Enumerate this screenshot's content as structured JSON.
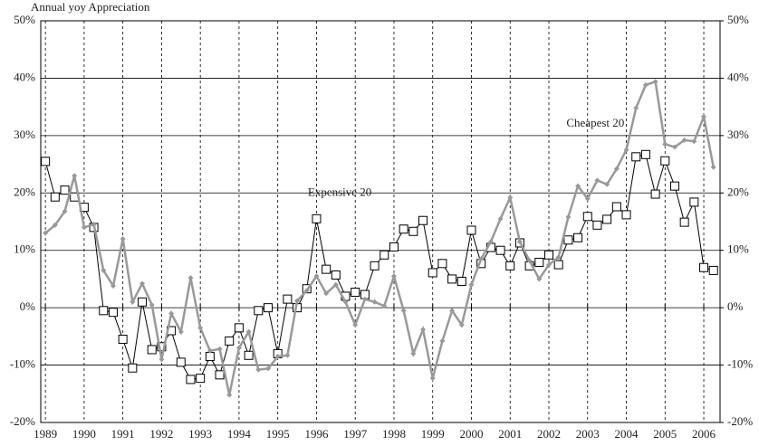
{
  "chart_data": {
    "type": "line",
    "title": "Annual yoy Appreciation",
    "x": [
      1989,
      1989.25,
      1989.5,
      1989.75,
      1990,
      1990.25,
      1990.5,
      1990.75,
      1991,
      1991.25,
      1991.5,
      1991.75,
      1992,
      1992.25,
      1992.5,
      1992.75,
      1993,
      1993.25,
      1993.5,
      1993.75,
      1994,
      1994.25,
      1994.5,
      1994.75,
      1995,
      1995.25,
      1995.5,
      1995.75,
      1996,
      1996.25,
      1996.5,
      1996.75,
      1997,
      1997.25,
      1997.5,
      1997.75,
      1998,
      1998.25,
      1998.5,
      1998.75,
      1999,
      1999.25,
      1999.5,
      1999.75,
      2000,
      2000.25,
      2000.5,
      2000.75,
      2001,
      2001.25,
      2001.5,
      2001.75,
      2002,
      2002.25,
      2002.5,
      2002.75,
      2003,
      2003.25,
      2003.5,
      2003.75,
      2004,
      2004.25,
      2004.5,
      2004.75,
      2005,
      2005.25,
      2005.5,
      2005.75,
      2006,
      2006.25
    ],
    "series": [
      {
        "name": "Expensive 20",
        "color": "#000000",
        "marker": "square",
        "values": [
          25.5,
          19.3,
          20.5,
          19.3,
          17.5,
          14.0,
          -0.5,
          -0.8,
          -5.5,
          -10.5,
          1.0,
          -7.3,
          -6.8,
          -4.0,
          -9.5,
          -12.5,
          -12.3,
          -8.5,
          -11.7,
          -5.8,
          -3.5,
          -8.3,
          -0.5,
          0.0,
          -8.0,
          1.5,
          0.0,
          3.3,
          15.5,
          6.7,
          5.7,
          2.0,
          2.7,
          2.3,
          7.3,
          9.2,
          10.6,
          13.7,
          13.3,
          15.2,
          6.1,
          7.7,
          5.0,
          4.6,
          13.5,
          7.7,
          10.5,
          10.0,
          7.3,
          11.3,
          7.3,
          7.9,
          9.2,
          7.5,
          11.8,
          12.2,
          15.9,
          14.4,
          15.4,
          17.6,
          16.2,
          26.3,
          26.7,
          19.8,
          25.6,
          21.2,
          14.9,
          18.4,
          7.0,
          6.5
        ]
      },
      {
        "name": "Cheapest 20",
        "color": "#999999",
        "marker": "diamond",
        "values": [
          13.0,
          14.4,
          16.8,
          23.0,
          14.0,
          14.5,
          6.5,
          3.8,
          12.0,
          1.0,
          4.2,
          0.5,
          -9.0,
          -1.0,
          -4.2,
          5.2,
          -3.5,
          -7.5,
          -7.2,
          -15.2,
          -7.0,
          -4.2,
          -10.8,
          -10.6,
          -8.5,
          -8.3,
          1.2,
          3.0,
          5.5,
          2.5,
          4.0,
          1.0,
          -3.0,
          1.5,
          1.0,
          0.3,
          5.5,
          -0.5,
          -8.0,
          -3.8,
          -12.3,
          -5.8,
          -0.5,
          -3.0,
          4.0,
          8.5,
          11.5,
          15.5,
          19.2,
          11.5,
          8.2,
          5.0,
          7.5,
          8.8,
          15.8,
          21.2,
          19.0,
          22.2,
          21.5,
          24.2,
          27.5,
          34.8,
          38.8,
          39.4,
          28.5,
          28.0,
          29.2,
          29.0,
          33.3,
          24.5
        ]
      }
    ],
    "xlim": [
      1988.88,
      2006.42
    ],
    "xticks": [
      1989,
      1990,
      1991,
      1992,
      1993,
      1994,
      1995,
      1996,
      1997,
      1998,
      1999,
      2000,
      2001,
      2002,
      2003,
      2004,
      2005,
      2006
    ],
    "ylim": [
      -20,
      50
    ],
    "yticks": [
      {
        "value": -20,
        "label": "-20%"
      },
      {
        "value": -10,
        "label": "-10%"
      },
      {
        "value": 0,
        "label": "0%"
      },
      {
        "value": 10,
        "label": "10%"
      },
      {
        "value": 20,
        "label": "20%"
      },
      {
        "value": 30,
        "label": "30%"
      },
      {
        "value": 40,
        "label": "40%"
      },
      {
        "value": 50,
        "label": "50%"
      }
    ],
    "y2lim": [
      -20,
      50
    ],
    "y2ticks": [
      {
        "value": -20,
        "label": "-20%"
      },
      {
        "value": -10,
        "label": "-10%"
      },
      {
        "value": 0,
        "label": "0%"
      },
      {
        "value": 10,
        "label": "10%"
      },
      {
        "value": 20,
        "label": "20%"
      },
      {
        "value": 30,
        "label": "30%"
      },
      {
        "value": 40,
        "label": "40%"
      },
      {
        "value": 50,
        "label": "50%"
      }
    ],
    "grid": true
  }
}
